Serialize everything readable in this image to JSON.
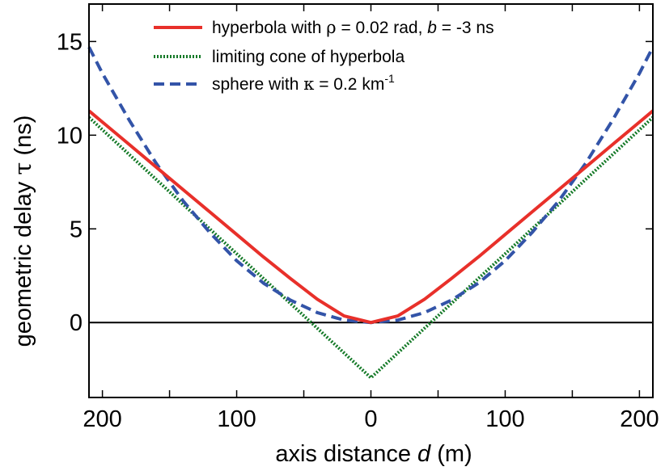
{
  "chart_data": {
    "type": "line",
    "xlabel": {
      "prefix": "axis distance ",
      "var": "d",
      "suffix": " (m)"
    },
    "ylabel": {
      "prefix": "geometric delay ",
      "var": "τ",
      "suffix": " (ns)"
    },
    "xlim": [
      -210,
      210
    ],
    "ylim": [
      -4,
      17
    ],
    "x_ticks": [
      {
        "value": -200,
        "label": "200"
      },
      {
        "value": -100,
        "label": "100"
      },
      {
        "value": 0,
        "label": "0"
      },
      {
        "value": 100,
        "label": "100"
      },
      {
        "value": 200,
        "label": "200"
      }
    ],
    "y_ticks": [
      {
        "value": 0,
        "label": "0"
      },
      {
        "value": 5,
        "label": "5"
      },
      {
        "value": 10,
        "label": "10"
      },
      {
        "value": 15,
        "label": "15"
      }
    ],
    "x_minor_ticks": [
      -150,
      -50,
      50,
      150
    ],
    "zero_line": 0,
    "legend_position": "top-center",
    "legend": {
      "hyperbola": {
        "text1": "hyperbola with ",
        "sym": "ρ",
        "text2": " = 0.02 rad, ",
        "var": "b",
        "text3": " = -3 ns"
      },
      "cone": {
        "text": "limiting cone of hyperbola"
      },
      "sphere": {
        "text1": "sphere with ",
        "sym": "κ",
        "text2": " = 0.2 km",
        "sup": "-1"
      }
    },
    "series": [
      {
        "key": "hyperbola",
        "color": "#e8302a",
        "style": "solid",
        "x": [
          -210,
          -200,
          -180,
          -160,
          -140,
          -120,
          -100,
          -80,
          -60,
          -40,
          -20,
          0,
          20,
          40,
          60,
          80,
          100,
          120,
          140,
          160,
          180,
          200,
          210
        ],
        "y": [
          11.3,
          10.7,
          9.5,
          8.3,
          7.1,
          5.9,
          4.7,
          3.5,
          2.35,
          1.25,
          0.35,
          0,
          0.35,
          1.25,
          2.35,
          3.5,
          4.7,
          5.9,
          7.1,
          8.3,
          9.5,
          10.7,
          11.3
        ]
      },
      {
        "key": "cone",
        "color": "#157a28",
        "style": "dotted",
        "x": [
          -210,
          0,
          210
        ],
        "y": [
          10.95,
          -2.95,
          10.95
        ]
      },
      {
        "key": "sphere",
        "color": "#3354a8",
        "style": "dashed",
        "x": [
          -210,
          -200,
          -180,
          -160,
          -140,
          -120,
          -100,
          -80,
          -60,
          -40,
          -20,
          0,
          20,
          40,
          60,
          80,
          100,
          120,
          140,
          160,
          180,
          200,
          210
        ],
        "y": [
          14.7,
          13.3,
          10.8,
          8.5,
          6.5,
          4.8,
          3.3,
          2.1,
          1.2,
          0.53,
          0.13,
          0,
          0.13,
          0.53,
          1.2,
          2.1,
          3.3,
          4.8,
          6.5,
          8.5,
          10.8,
          13.3,
          14.7
        ]
      }
    ]
  }
}
